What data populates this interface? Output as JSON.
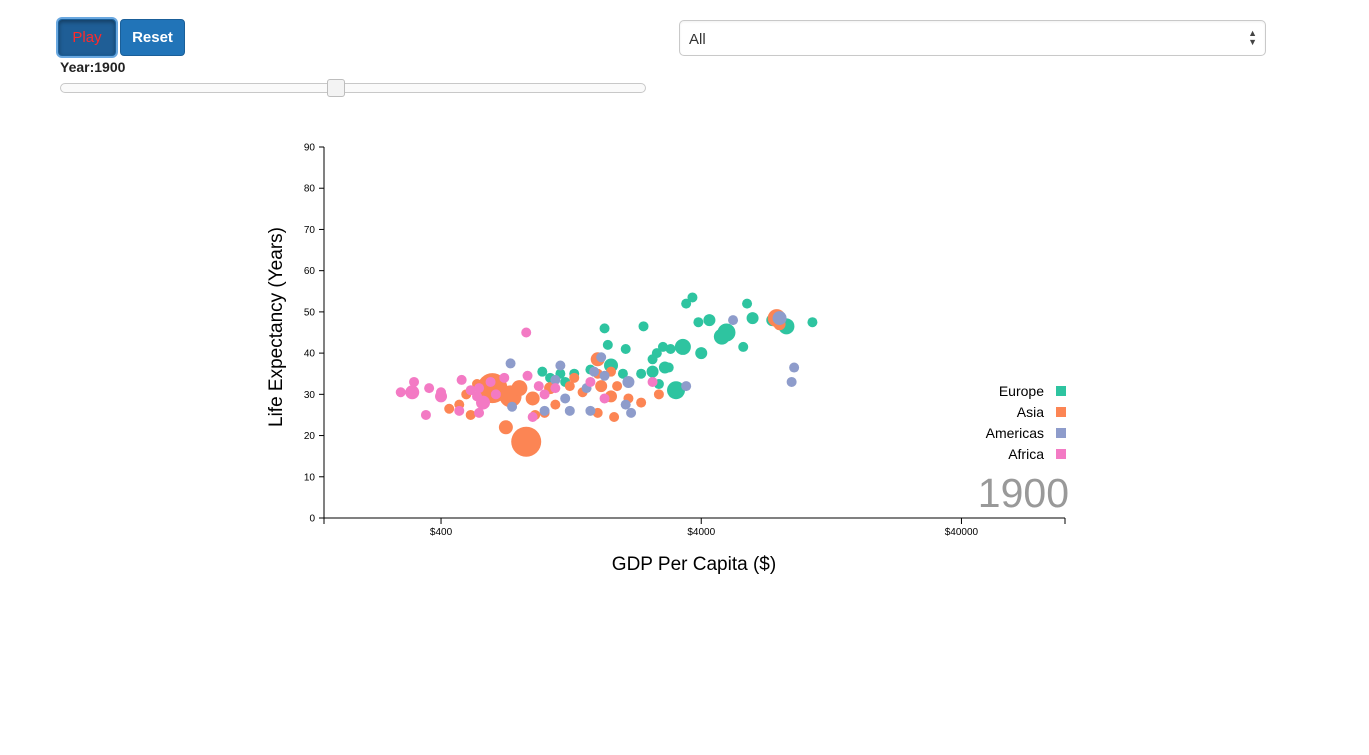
{
  "controls": {
    "play_label": "Play",
    "reset_label": "Reset",
    "year_label": "Year:1900",
    "slider_position": 0.47,
    "filter_selected": "All"
  },
  "colors": {
    "Europe": "#2ec4a0",
    "Asia": "#fc8554",
    "Americas": "#8e9ccb",
    "Africa": "#f37ac4",
    "year_watermark": "#999999"
  },
  "chart_data": {
    "type": "scatter",
    "xlabel": "GDP Per Capita ($)",
    "ylabel": "Life Expectancy (Years)",
    "x_scale": "log",
    "xlim": [
      142,
      100000
    ],
    "ylim": [
      0,
      90
    ],
    "x_ticks": [
      400,
      4000,
      40000
    ],
    "x_tick_labels": [
      "$400",
      "$4000",
      "$40000"
    ],
    "y_ticks": [
      0,
      10,
      20,
      30,
      40,
      50,
      60,
      70,
      80,
      90
    ],
    "grid": false,
    "legend": [
      "Europe",
      "Asia",
      "Americas",
      "Africa"
    ],
    "legend_placement": "bottom-right",
    "year_watermark": "1900",
    "marker_size_encodes": "population (relative radius)",
    "series": [
      {
        "name": "Europe",
        "points": [
          {
            "x": 3500,
            "y": 52.0,
            "r": 5
          },
          {
            "x": 3700,
            "y": 53.5,
            "r": 5
          },
          {
            "x": 4300,
            "y": 48.0,
            "r": 6
          },
          {
            "x": 3900,
            "y": 47.5,
            "r": 5
          },
          {
            "x": 6000,
            "y": 52.0,
            "r": 5
          },
          {
            "x": 6300,
            "y": 48.5,
            "r": 6
          },
          {
            "x": 7500,
            "y": 48.0,
            "r": 6
          },
          {
            "x": 8500,
            "y": 46.5,
            "r": 8
          },
          {
            "x": 10700,
            "y": 47.5,
            "r": 5
          },
          {
            "x": 5000,
            "y": 45.0,
            "r": 9
          },
          {
            "x": 4800,
            "y": 44.0,
            "r": 8
          },
          {
            "x": 5800,
            "y": 41.5,
            "r": 5
          },
          {
            "x": 3400,
            "y": 41.5,
            "r": 8
          },
          {
            "x": 4000,
            "y": 40.0,
            "r": 6
          },
          {
            "x": 2700,
            "y": 40.0,
            "r": 5
          },
          {
            "x": 2850,
            "y": 41.5,
            "r": 5
          },
          {
            "x": 2600,
            "y": 38.5,
            "r": 5
          },
          {
            "x": 2400,
            "y": 46.5,
            "r": 5
          },
          {
            "x": 1750,
            "y": 42.0,
            "r": 5
          },
          {
            "x": 1700,
            "y": 46.0,
            "r": 5
          },
          {
            "x": 2050,
            "y": 41.0,
            "r": 5
          },
          {
            "x": 3050,
            "y": 41.0,
            "r": 5
          },
          {
            "x": 2900,
            "y": 36.5,
            "r": 6
          },
          {
            "x": 1800,
            "y": 37.0,
            "r": 7
          },
          {
            "x": 1500,
            "y": 36.0,
            "r": 5
          },
          {
            "x": 1300,
            "y": 35.0,
            "r": 5
          },
          {
            "x": 1150,
            "y": 35.0,
            "r": 5
          },
          {
            "x": 980,
            "y": 35.5,
            "r": 5
          },
          {
            "x": 1050,
            "y": 34.0,
            "r": 5
          },
          {
            "x": 2000,
            "y": 35.0,
            "r": 5
          },
          {
            "x": 2350,
            "y": 35.0,
            "r": 5
          },
          {
            "x": 2600,
            "y": 35.5,
            "r": 6
          },
          {
            "x": 3000,
            "y": 36.5,
            "r": 5
          },
          {
            "x": 3200,
            "y": 31.0,
            "r": 9
          },
          {
            "x": 2750,
            "y": 32.5,
            "r": 5
          },
          {
            "x": 1200,
            "y": 33.0,
            "r": 5
          }
        ]
      },
      {
        "name": "Asia",
        "points": [
          {
            "x": 630,
            "y": 31.5,
            "r": 15
          },
          {
            "x": 740,
            "y": 29.5,
            "r": 11
          },
          {
            "x": 800,
            "y": 31.5,
            "r": 8
          },
          {
            "x": 900,
            "y": 29.0,
            "r": 7
          },
          {
            "x": 850,
            "y": 18.5,
            "r": 15
          },
          {
            "x": 710,
            "y": 22.0,
            "r": 7
          },
          {
            "x": 1600,
            "y": 38.5,
            "r": 7
          },
          {
            "x": 1600,
            "y": 35.0,
            "r": 5
          },
          {
            "x": 1650,
            "y": 32.0,
            "r": 6
          },
          {
            "x": 1900,
            "y": 32.0,
            "r": 5
          },
          {
            "x": 2100,
            "y": 29.0,
            "r": 5
          },
          {
            "x": 1800,
            "y": 29.5,
            "r": 6
          },
          {
            "x": 1600,
            "y": 25.5,
            "r": 5
          },
          {
            "x": 1850,
            "y": 24.5,
            "r": 5
          },
          {
            "x": 2350,
            "y": 28.0,
            "r": 5
          },
          {
            "x": 2750,
            "y": 30.0,
            "r": 5
          },
          {
            "x": 1050,
            "y": 31.5,
            "r": 6
          },
          {
            "x": 1250,
            "y": 32.0,
            "r": 5
          },
          {
            "x": 1400,
            "y": 30.5,
            "r": 5
          },
          {
            "x": 1300,
            "y": 34.0,
            "r": 5
          },
          {
            "x": 1100,
            "y": 27.5,
            "r": 5
          },
          {
            "x": 1000,
            "y": 25.5,
            "r": 5
          },
          {
            "x": 920,
            "y": 25.0,
            "r": 5
          },
          {
            "x": 550,
            "y": 32.5,
            "r": 5
          },
          {
            "x": 500,
            "y": 30.0,
            "r": 5
          },
          {
            "x": 470,
            "y": 27.5,
            "r": 5
          },
          {
            "x": 430,
            "y": 26.5,
            "r": 5
          },
          {
            "x": 520,
            "y": 25.0,
            "r": 5
          },
          {
            "x": 1800,
            "y": 35.5,
            "r": 5
          },
          {
            "x": 7800,
            "y": 48.5,
            "r": 9
          },
          {
            "x": 8000,
            "y": 47.0,
            "r": 6
          }
        ]
      },
      {
        "name": "Americas",
        "points": [
          {
            "x": 8000,
            "y": 48.5,
            "r": 7
          },
          {
            "x": 5300,
            "y": 48.0,
            "r": 5
          },
          {
            "x": 9100,
            "y": 36.5,
            "r": 5
          },
          {
            "x": 8900,
            "y": 33.0,
            "r": 5
          },
          {
            "x": 3500,
            "y": 32.0,
            "r": 5
          },
          {
            "x": 2100,
            "y": 33.0,
            "r": 6
          },
          {
            "x": 1700,
            "y": 34.5,
            "r": 5
          },
          {
            "x": 1550,
            "y": 35.5,
            "r": 5
          },
          {
            "x": 1450,
            "y": 31.5,
            "r": 5
          },
          {
            "x": 1200,
            "y": 29.0,
            "r": 5
          },
          {
            "x": 1100,
            "y": 33.5,
            "r": 5
          },
          {
            "x": 1150,
            "y": 37.0,
            "r": 5
          },
          {
            "x": 1650,
            "y": 39.0,
            "r": 5
          },
          {
            "x": 740,
            "y": 37.5,
            "r": 5
          },
          {
            "x": 1250,
            "y": 26.0,
            "r": 5
          },
          {
            "x": 1500,
            "y": 26.0,
            "r": 5
          },
          {
            "x": 2050,
            "y": 27.5,
            "r": 5
          },
          {
            "x": 2150,
            "y": 25.5,
            "r": 5
          },
          {
            "x": 1000,
            "y": 26.0,
            "r": 5
          },
          {
            "x": 750,
            "y": 27.0,
            "r": 5
          }
        ]
      },
      {
        "name": "Africa",
        "points": [
          {
            "x": 280,
            "y": 30.5,
            "r": 5
          },
          {
            "x": 310,
            "y": 30.5,
            "r": 7
          },
          {
            "x": 315,
            "y": 33.0,
            "r": 5
          },
          {
            "x": 360,
            "y": 31.5,
            "r": 5
          },
          {
            "x": 400,
            "y": 30.5,
            "r": 5
          },
          {
            "x": 400,
            "y": 29.5,
            "r": 6
          },
          {
            "x": 480,
            "y": 33.5,
            "r": 5
          },
          {
            "x": 520,
            "y": 31.0,
            "r": 5
          },
          {
            "x": 550,
            "y": 29.5,
            "r": 5
          },
          {
            "x": 580,
            "y": 28.0,
            "r": 7
          },
          {
            "x": 620,
            "y": 33.0,
            "r": 5
          },
          {
            "x": 650,
            "y": 30.0,
            "r": 5
          },
          {
            "x": 700,
            "y": 34.0,
            "r": 5
          },
          {
            "x": 860,
            "y": 34.5,
            "r": 5
          },
          {
            "x": 950,
            "y": 32.0,
            "r": 5
          },
          {
            "x": 1000,
            "y": 30.0,
            "r": 5
          },
          {
            "x": 1100,
            "y": 31.5,
            "r": 5
          },
          {
            "x": 850,
            "y": 45.0,
            "r": 5
          },
          {
            "x": 1500,
            "y": 33.0,
            "r": 5
          },
          {
            "x": 2600,
            "y": 33.0,
            "r": 5
          },
          {
            "x": 1700,
            "y": 29.0,
            "r": 5
          },
          {
            "x": 900,
            "y": 24.5,
            "r": 5
          },
          {
            "x": 560,
            "y": 25.5,
            "r": 5
          },
          {
            "x": 350,
            "y": 25.0,
            "r": 5
          },
          {
            "x": 470,
            "y": 26.0,
            "r": 5
          },
          {
            "x": 560,
            "y": 31.5,
            "r": 5
          }
        ]
      }
    ]
  }
}
